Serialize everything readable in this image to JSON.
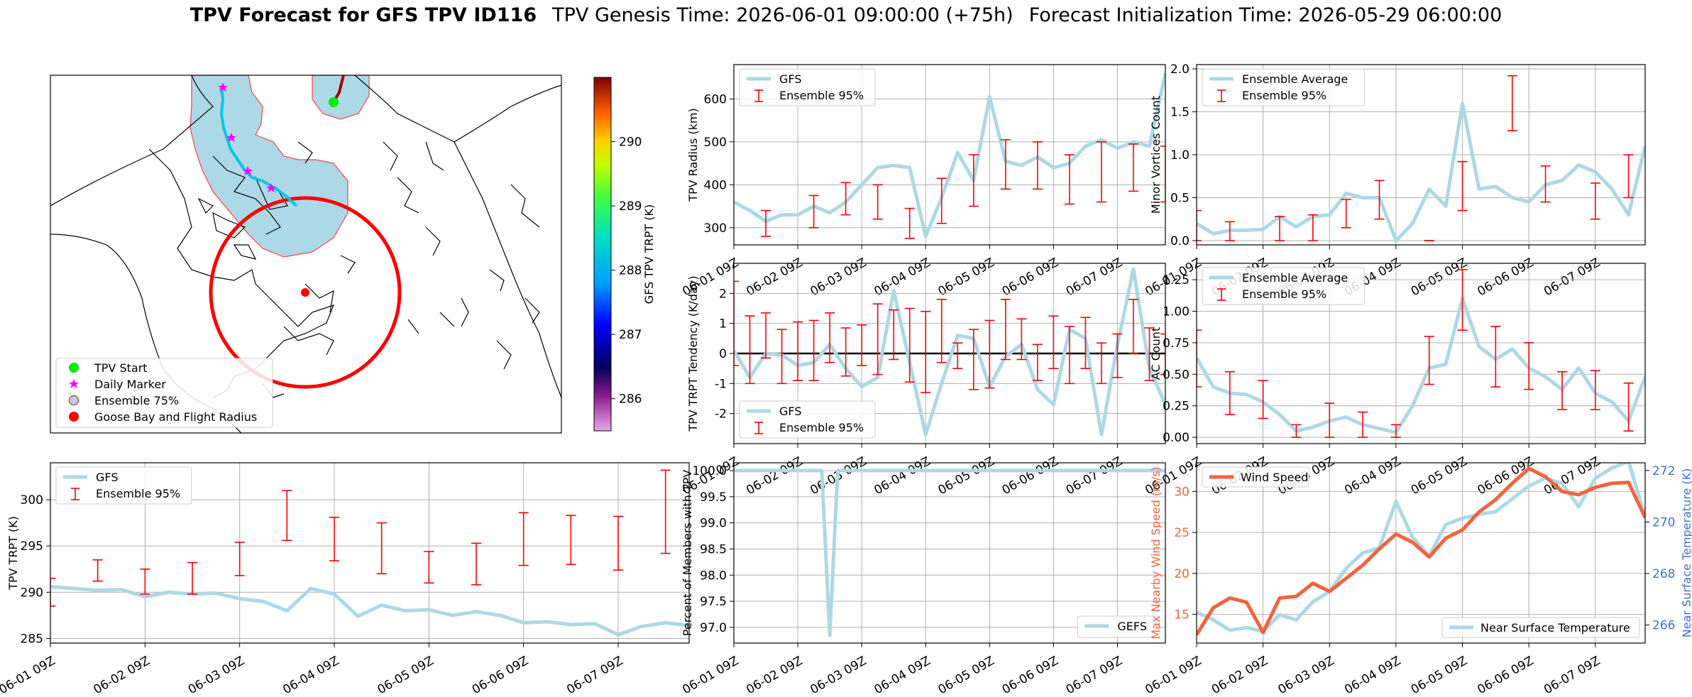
{
  "title": {
    "bold": "TPV Forecast for GFS TPV ID116",
    "genesis": "TPV Genesis Time: 2026-06-01 09:00:00 (+75h)",
    "init": "Forecast Initialization Time: 2026-05-29 06:00:00"
  },
  "colors": {
    "gfs_line": "#add8e6",
    "ensemble_bar": "#ff0000",
    "wind": "#f4623f",
    "temp_axis": "#3b6fe0",
    "grid": "#b0b0b0"
  },
  "x_ticks": [
    "06-01 09Z",
    "06-02 09Z",
    "06-03 09Z",
    "06-04 09Z",
    "06-05 09Z",
    "06-06 09Z",
    "06-07 09Z"
  ],
  "map": {
    "legend": [
      {
        "label": "TPV Start",
        "color": "#00ee00",
        "marker": "circle"
      },
      {
        "label": "Daily Marker",
        "color": "#ff00ff",
        "marker": "star"
      },
      {
        "label": "Ensemble 75%",
        "color": "#add8e6",
        "marker": "circle-outline"
      },
      {
        "label": "Goose Bay and Flight Radius",
        "color": "#ff0000",
        "marker": "circle"
      }
    ],
    "colorbar": {
      "label": "GFS TPV TRPT (K)",
      "ticks": [
        "290",
        "289",
        "288",
        "287",
        "286"
      ],
      "min": 285.5,
      "max": 291.0,
      "tick_values": [
        290,
        289,
        288,
        287,
        286
      ]
    }
  },
  "chart_data": [
    {
      "id": "radius",
      "type": "line",
      "ylabel": "TPV Radius (km)",
      "ylim": [
        260,
        680
      ],
      "yticks": [
        300,
        400,
        500,
        600
      ],
      "legend": {
        "line": "GFS",
        "bar": "Ensemble 95%"
      },
      "gfs": [
        360,
        340,
        315,
        330,
        330,
        350,
        335,
        360,
        400,
        440,
        445,
        440,
        280,
        370,
        475,
        410,
        605,
        455,
        445,
        465,
        440,
        450,
        490,
        505,
        485,
        500,
        490,
        660
      ],
      "bars": [
        [
          2,
          280,
          340
        ],
        [
          5,
          300,
          375
        ],
        [
          7,
          330,
          405
        ],
        [
          9,
          320,
          400
        ],
        [
          11,
          275,
          345
        ],
        [
          13,
          310,
          415
        ],
        [
          15,
          350,
          470
        ],
        [
          17,
          390,
          505
        ],
        [
          19,
          390,
          500
        ],
        [
          21,
          355,
          470
        ],
        [
          23,
          360,
          500
        ],
        [
          25,
          385,
          495
        ],
        [
          27,
          360,
          490
        ]
      ]
    },
    {
      "id": "minor",
      "type": "line",
      "ylabel": "Minor Vortices Count",
      "ylim": [
        -0.05,
        2.05
      ],
      "yticks": [
        "0.0",
        "0.5",
        "1.0",
        "1.5",
        "2.0"
      ],
      "ytick_values": [
        0,
        0.5,
        1,
        1.5,
        2
      ],
      "legend": {
        "line": "Ensemble Average",
        "bar": "Ensemble 95%"
      },
      "gfs": [
        0.2,
        0.08,
        0.12,
        0.12,
        0.13,
        0.28,
        0.16,
        0.28,
        0.3,
        0.55,
        0.5,
        0.5,
        0.0,
        0.2,
        0.6,
        0.4,
        1.6,
        0.6,
        0.63,
        0.5,
        0.45,
        0.65,
        0.7,
        0.88,
        0.8,
        0.6,
        0.3,
        1.1
      ],
      "bars": [
        [
          0,
          0.0,
          0.35
        ],
        [
          2,
          0.0,
          0.22
        ],
        [
          5,
          0.0,
          0.28
        ],
        [
          7,
          0.0,
          0.3
        ],
        [
          9,
          0.15,
          0.48
        ],
        [
          11,
          0.25,
          0.7
        ],
        [
          14,
          0.0,
          0.0
        ],
        [
          16,
          0.35,
          0.92
        ],
        [
          19,
          1.28,
          1.92
        ],
        [
          21,
          0.45,
          0.87
        ],
        [
          24,
          0.25,
          0.67
        ],
        [
          26,
          0.5,
          1.0
        ],
        [
          28,
          0.6,
          1.08
        ],
        [
          31,
          0.1,
          0.5
        ]
      ]
    },
    {
      "id": "tendency",
      "type": "line",
      "ylabel": "TPV TRPT Tendency (K/day)",
      "ylim": [
        -3.0,
        3.0
      ],
      "yticks": [
        -2,
        -1,
        0,
        1,
        2
      ],
      "legend": {
        "line": "GFS",
        "bar": "Ensemble 95%"
      },
      "gfs": [
        0.1,
        -0.8,
        0.0,
        -0.05,
        -0.4,
        -0.3,
        0.3,
        -0.5,
        -1.1,
        -0.8,
        2.1,
        -0.3,
        -2.7,
        -1.0,
        0.6,
        0.5,
        -1.1,
        -0.1,
        0.3,
        -1.2,
        -1.7,
        0.8,
        0.5,
        -2.7,
        0.3,
        2.8,
        -0.5,
        -1.7
      ],
      "bars": [
        [
          0,
          -0.4,
          2.4
        ],
        [
          1,
          -1.0,
          1.25
        ],
        [
          2,
          -0.15,
          1.35
        ],
        [
          3,
          -1.0,
          0.8
        ],
        [
          4,
          -0.9,
          1.05
        ],
        [
          5,
          -0.9,
          1.1
        ],
        [
          6,
          -0.3,
          1.35
        ],
        [
          7,
          -0.75,
          0.85
        ],
        [
          8,
          -0.4,
          0.95
        ],
        [
          9,
          -0.7,
          1.65
        ],
        [
          10,
          -0.2,
          1.45
        ],
        [
          11,
          -0.95,
          1.5
        ],
        [
          12,
          -1.3,
          1.4
        ],
        [
          13,
          -0.3,
          1.8
        ],
        [
          14,
          -0.5,
          0.35
        ],
        [
          15,
          -1.2,
          0.8
        ],
        [
          16,
          -1.15,
          1.1
        ],
        [
          17,
          -0.2,
          1.8
        ],
        [
          18,
          -0.2,
          1.15
        ],
        [
          19,
          -0.9,
          0.3
        ],
        [
          20,
          -0.5,
          1.25
        ],
        [
          21,
          -1.0,
          0.9
        ],
        [
          22,
          -0.5,
          1.2
        ],
        [
          23,
          -1.0,
          0.35
        ],
        [
          24,
          -0.8,
          0.65
        ],
        [
          25,
          0.0,
          1.8
        ],
        [
          26,
          -0.9,
          0.85
        ],
        [
          27,
          -0.7,
          0.65
        ]
      ]
    },
    {
      "id": "ac",
      "type": "line",
      "ylabel": "AC Count",
      "ylim": [
        -0.05,
        1.38
      ],
      "yticks": [
        "0.00",
        "0.25",
        "0.50",
        "0.75",
        "1.00",
        "1.25"
      ],
      "ytick_values": [
        0,
        0.25,
        0.5,
        0.75,
        1.0,
        1.25
      ],
      "legend": {
        "line": "Ensemble Average",
        "bar": "Ensemble 95%"
      },
      "gfs": [
        0.63,
        0.4,
        0.35,
        0.34,
        0.28,
        0.18,
        0.05,
        0.08,
        0.13,
        0.16,
        0.1,
        0.07,
        0.04,
        0.25,
        0.55,
        0.58,
        1.1,
        0.72,
        0.62,
        0.7,
        0.55,
        0.48,
        0.38,
        0.55,
        0.35,
        0.28,
        0.13,
        0.48
      ],
      "bars": [
        [
          0,
          0.4,
          0.85
        ],
        [
          2,
          0.18,
          0.52
        ],
        [
          4,
          0.15,
          0.45
        ],
        [
          6,
          0.0,
          0.1
        ],
        [
          8,
          0.0,
          0.27
        ],
        [
          10,
          0.0,
          0.2
        ],
        [
          12,
          0.0,
          0.1
        ],
        [
          14,
          0.42,
          0.8
        ],
        [
          16,
          0.85,
          1.33
        ],
        [
          18,
          0.4,
          0.88
        ],
        [
          20,
          0.38,
          0.75
        ],
        [
          22,
          0.22,
          0.52
        ],
        [
          24,
          0.22,
          0.53
        ],
        [
          26,
          0.05,
          0.43
        ]
      ]
    },
    {
      "id": "trpt",
      "type": "line",
      "ylabel": "TPV TRPT (K)",
      "ylim": [
        284.5,
        304
      ],
      "yticks": [
        285,
        290,
        295,
        300
      ],
      "legend": {
        "line": "GFS",
        "bar": "Ensemble 95%"
      },
      "gfs": [
        290.6,
        290.4,
        290.2,
        290.3,
        289.5,
        290.0,
        289.8,
        289.9,
        289.3,
        289.0,
        288.0,
        290.4,
        289.8,
        287.4,
        288.6,
        288.0,
        288.1,
        287.5,
        287.9,
        287.5,
        286.7,
        286.8,
        286.5,
        286.6,
        285.4,
        286.3,
        286.7,
        286.4
      ],
      "bars": [
        [
          0,
          288.5,
          291.5
        ],
        [
          2,
          291.2,
          293.5
        ],
        [
          4,
          289.8,
          292.5
        ],
        [
          6,
          289.8,
          293.2
        ],
        [
          8,
          291.8,
          295.4
        ],
        [
          10,
          295.6,
          301.0
        ],
        [
          12,
          293.4,
          298.1
        ],
        [
          14,
          292.0,
          297.5
        ],
        [
          16,
          291.0,
          294.4
        ],
        [
          18,
          290.8,
          295.3
        ],
        [
          20,
          292.9,
          298.6
        ],
        [
          22,
          293.0,
          298.3
        ],
        [
          24,
          292.4,
          298.2
        ],
        [
          26,
          294.2,
          303.2
        ]
      ]
    },
    {
      "id": "percent",
      "type": "line",
      "ylabel": "Percent of Members with TPV",
      "ylim": [
        96.7,
        100.15
      ],
      "yticks": [
        "97.0",
        "97.5",
        "98.0",
        "98.5",
        "99.0",
        "99.5",
        "100.0"
      ],
      "ytick_values": [
        97.0,
        97.5,
        98.0,
        98.5,
        99.0,
        99.5,
        100.0
      ],
      "legend": {
        "line": "GEFS"
      },
      "gfs_x": [
        0,
        1,
        2,
        3,
        4,
        5,
        5.5,
        6,
        6.5,
        7,
        8,
        9,
        10,
        11,
        12,
        13,
        14,
        15,
        16,
        17,
        18,
        19,
        20,
        21,
        22,
        23,
        24,
        25,
        26,
        27
      ],
      "gfs": [
        100,
        100,
        100,
        100,
        100,
        100,
        100,
        96.85,
        100,
        100,
        100,
        100,
        100,
        100,
        100,
        100,
        100,
        100,
        100,
        100,
        100,
        100,
        100,
        100,
        100,
        100,
        100,
        100,
        100,
        100
      ]
    },
    {
      "id": "wind",
      "type": "dual-line",
      "ylabel_left": "Max Nearby Wind Speed (m/s)",
      "ylabel_right": "Near Surface Temperature (K)",
      "ylim_left": [
        11.5,
        33.5
      ],
      "ylim_right": [
        265.3,
        272.3
      ],
      "yticks_left": [
        15,
        20,
        25,
        30
      ],
      "yticks_right": [
        266,
        268,
        270,
        272
      ],
      "legend_left": "Wind Speed",
      "legend_right": "Near Surface Temperature",
      "wind": [
        12.5,
        15.8,
        17.0,
        16.5,
        12.8,
        17.0,
        17.2,
        18.8,
        17.8,
        19.4,
        21.0,
        23.0,
        24.8,
        23.8,
        22.0,
        24.3,
        25.3,
        27.5,
        29.0,
        31.0,
        32.8,
        31.8,
        30.0,
        29.6,
        30.5,
        31.0,
        31.1,
        26.8
      ],
      "temp": [
        266.5,
        266.2,
        265.8,
        265.9,
        265.75,
        266.4,
        266.2,
        266.9,
        267.3,
        268.2,
        268.8,
        269.0,
        270.8,
        269.4,
        268.7,
        269.9,
        270.15,
        270.3,
        270.4,
        270.9,
        271.4,
        271.7,
        271.5,
        270.6,
        271.7,
        272.1,
        272.35,
        270.2
      ]
    }
  ]
}
